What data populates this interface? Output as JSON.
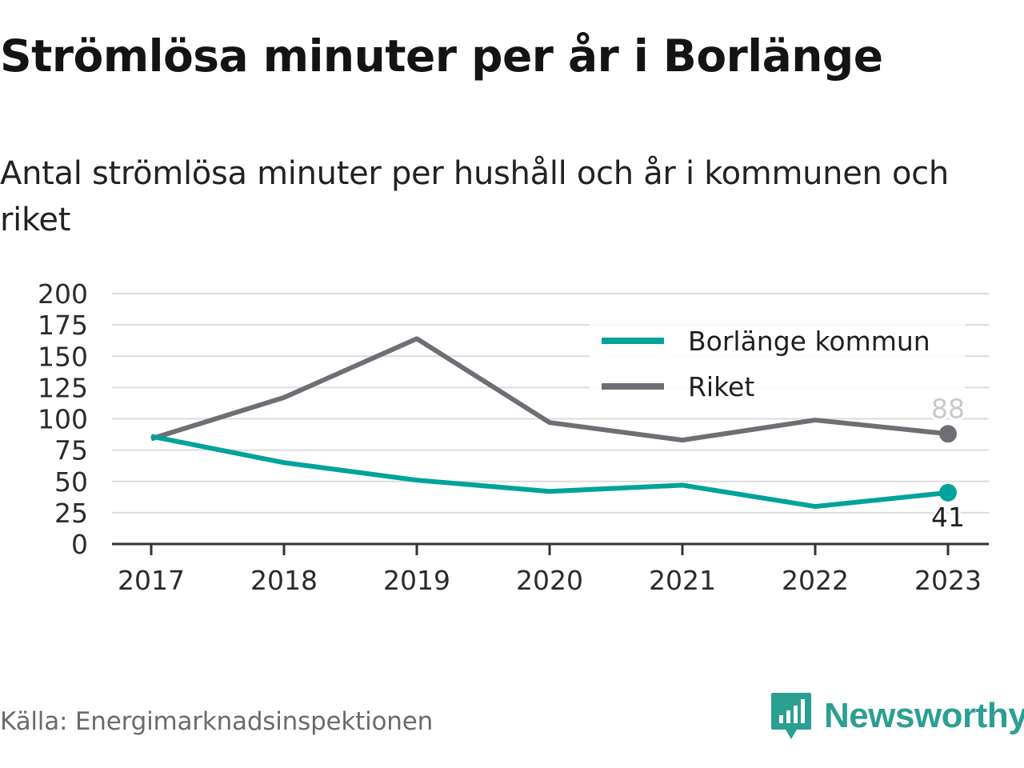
{
  "chart_data": {
    "type": "line",
    "title": "Strömlösa minuter per år i Borlänge",
    "subtitle": "Antal strömlösa minuter per hushåll och år i kommunen och riket",
    "x": [
      "2017",
      "2018",
      "2019",
      "2020",
      "2021",
      "2022",
      "2023"
    ],
    "ylim": [
      0,
      200
    ],
    "yticks": [
      0,
      25,
      50,
      75,
      100,
      125,
      150,
      175,
      200
    ],
    "grid": true,
    "legend_position": "top-right",
    "series": [
      {
        "name": "Borlänge kommun",
        "color": "#00a39b",
        "values": [
          86,
          65,
          51,
          42,
          47,
          30,
          41
        ],
        "end_label": "41"
      },
      {
        "name": "Riket",
        "color": "#6f6e74",
        "values": [
          84,
          117,
          164,
          97,
          83,
          99,
          88
        ],
        "end_label": "88"
      }
    ]
  },
  "footer": {
    "source": "Källa: Energimarknadsinspektionen",
    "brand": "Newsworthy",
    "brand_logo_icon": "newsworthy-logo-icon"
  }
}
